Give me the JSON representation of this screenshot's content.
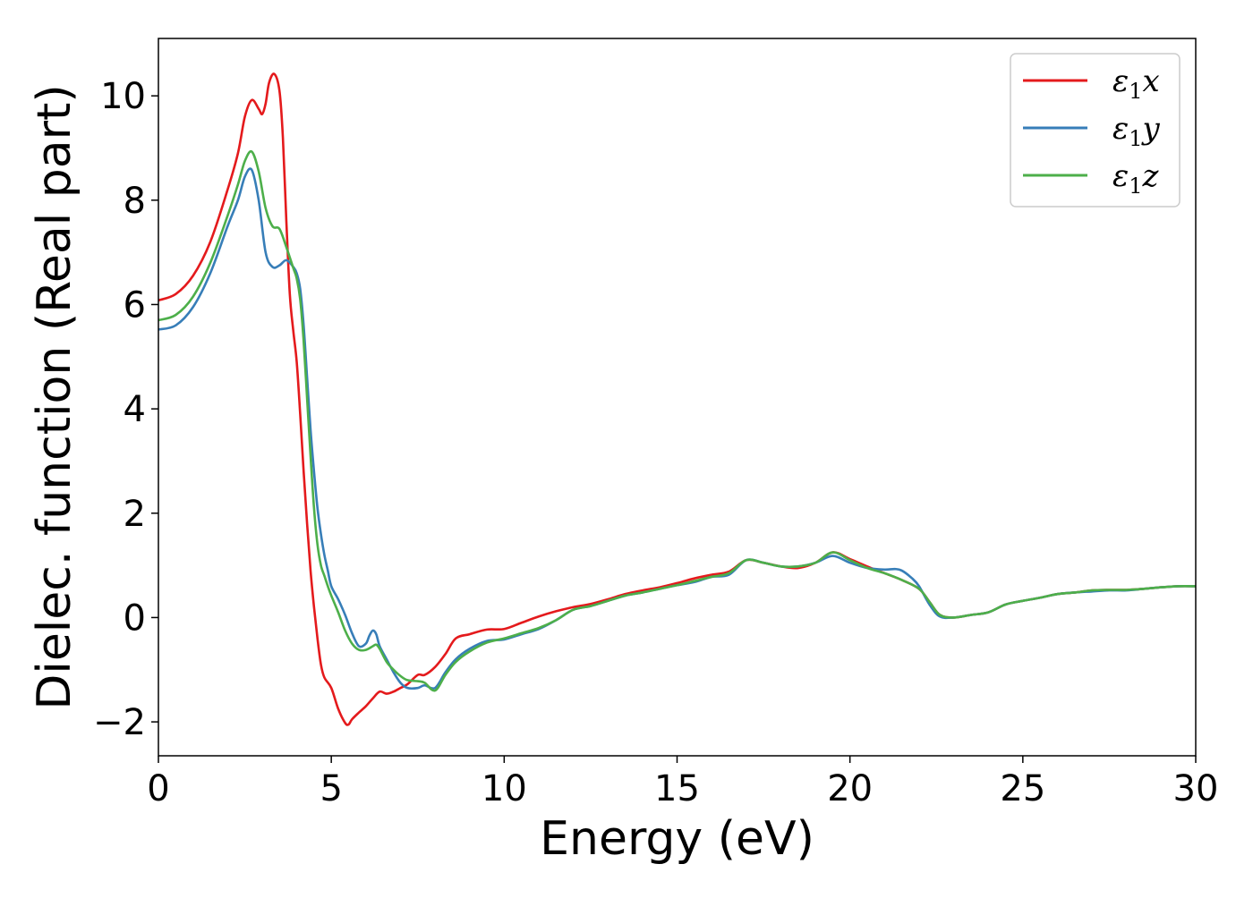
{
  "chart_data": {
    "type": "line",
    "title": "",
    "xlabel": "Energy (eV)",
    "ylabel": "Dielec. function (Real part)",
    "xlim": [
      0,
      30
    ],
    "ylim": [
      -2.65,
      11.1
    ],
    "xticks": [
      0,
      5,
      10,
      15,
      20,
      25,
      30
    ],
    "xtick_labels": [
      "0",
      "5",
      "10",
      "15",
      "20",
      "25",
      "30"
    ],
    "yticks": [
      -2,
      0,
      2,
      4,
      6,
      8,
      10
    ],
    "ytick_labels": [
      "−2",
      "0",
      "2",
      "4",
      "6",
      "8",
      "10"
    ],
    "grid": false,
    "legend_position": "top-right",
    "series": [
      {
        "name": "ε₁x",
        "legend_symbol": "ε",
        "legend_sub": "1",
        "legend_axis": "x",
        "color": "#e41a1c",
        "x": [
          0,
          0.5,
          1,
          1.5,
          2,
          2.3,
          2.5,
          2.7,
          2.9,
          3.0,
          3.1,
          3.2,
          3.35,
          3.5,
          3.6,
          3.7,
          3.8,
          3.9,
          4.0,
          4.1,
          4.2,
          4.3,
          4.4,
          4.5,
          4.6,
          4.7,
          4.8,
          5.0,
          5.2,
          5.4,
          5.5,
          5.6,
          5.8,
          6.0,
          6.2,
          6.4,
          6.6,
          6.8,
          7.0,
          7.2,
          7.5,
          7.7,
          8.0,
          8.3,
          8.6,
          9.0,
          9.5,
          10,
          10.5,
          11,
          11.5,
          12,
          12.5,
          13,
          13.5,
          14,
          14.5,
          15,
          15.5,
          16,
          16.5,
          17,
          17.5,
          18,
          18.5,
          19,
          19.5,
          20,
          20.5,
          21,
          21.5,
          22,
          22.3,
          22.6,
          23,
          23.5,
          24,
          24.5,
          25,
          25.5,
          26,
          26.5,
          27,
          27.5,
          28,
          28.5,
          29,
          29.5,
          30
        ],
        "y": [
          6.08,
          6.2,
          6.55,
          7.2,
          8.2,
          8.9,
          9.6,
          9.92,
          9.75,
          9.65,
          9.85,
          10.25,
          10.42,
          10.1,
          9.2,
          7.6,
          6.2,
          5.5,
          4.9,
          3.9,
          2.8,
          1.8,
          0.9,
          0.2,
          -0.4,
          -0.9,
          -1.15,
          -1.35,
          -1.75,
          -2.02,
          -2.05,
          -1.95,
          -1.82,
          -1.7,
          -1.55,
          -1.42,
          -1.46,
          -1.42,
          -1.35,
          -1.28,
          -1.1,
          -1.1,
          -0.95,
          -0.7,
          -0.4,
          -0.32,
          -0.23,
          -0.22,
          -0.1,
          0.02,
          0.12,
          0.2,
          0.26,
          0.35,
          0.45,
          0.52,
          0.58,
          0.66,
          0.75,
          0.82,
          0.88,
          1.1,
          1.05,
          0.98,
          0.95,
          1.05,
          1.25,
          1.12,
          0.98,
          0.85,
          0.72,
          0.55,
          0.3,
          0.05,
          0.0,
          0.05,
          0.1,
          0.25,
          0.32,
          0.38,
          0.45,
          0.48,
          0.52,
          0.53,
          0.53,
          0.55,
          0.58,
          0.6,
          0.6
        ]
      },
      {
        "name": "ε₁y",
        "legend_symbol": "ε",
        "legend_sub": "1",
        "legend_axis": "y",
        "color": "#377eb8",
        "x": [
          0,
          0.5,
          1,
          1.5,
          2,
          2.3,
          2.5,
          2.7,
          2.9,
          3.1,
          3.3,
          3.5,
          3.7,
          3.9,
          4.0,
          4.1,
          4.2,
          4.3,
          4.4,
          4.5,
          4.6,
          4.7,
          4.8,
          4.9,
          5.0,
          5.2,
          5.4,
          5.6,
          5.8,
          6.0,
          6.1,
          6.2,
          6.3,
          6.4,
          6.6,
          6.8,
          7.0,
          7.2,
          7.5,
          7.7,
          8.0,
          8.3,
          8.6,
          9.0,
          9.5,
          10,
          10.5,
          11,
          11.5,
          12,
          12.5,
          13,
          13.5,
          14,
          14.5,
          15,
          15.5,
          16,
          16.5,
          17,
          17.5,
          18,
          18.5,
          19,
          19.5,
          20,
          20.5,
          21,
          21.3,
          21.5,
          21.8,
          22,
          22.3,
          22.6,
          23,
          23.5,
          24,
          24.5,
          25,
          25.5,
          26,
          26.5,
          27,
          27.5,
          28,
          28.5,
          29,
          29.5,
          30
        ],
        "y": [
          5.52,
          5.6,
          5.95,
          6.6,
          7.5,
          8.0,
          8.45,
          8.58,
          8.0,
          7.0,
          6.72,
          6.75,
          6.85,
          6.72,
          6.6,
          6.3,
          5.6,
          4.6,
          3.6,
          2.8,
          2.1,
          1.6,
          1.2,
          0.9,
          0.6,
          0.35,
          0.05,
          -0.3,
          -0.55,
          -0.5,
          -0.35,
          -0.25,
          -0.32,
          -0.55,
          -0.8,
          -1.05,
          -1.25,
          -1.35,
          -1.35,
          -1.3,
          -1.35,
          -1.05,
          -0.8,
          -0.6,
          -0.45,
          -0.42,
          -0.32,
          -0.22,
          -0.05,
          0.15,
          0.22,
          0.32,
          0.42,
          0.48,
          0.55,
          0.62,
          0.68,
          0.78,
          0.82,
          1.1,
          1.05,
          0.98,
          0.98,
          1.05,
          1.18,
          1.05,
          0.95,
          0.92,
          0.93,
          0.9,
          0.75,
          0.6,
          0.25,
          0.02,
          0.0,
          0.05,
          0.1,
          0.25,
          0.32,
          0.38,
          0.45,
          0.48,
          0.5,
          0.52,
          0.52,
          0.55,
          0.58,
          0.6,
          0.6
        ]
      },
      {
        "name": "ε₁z",
        "legend_symbol": "ε",
        "legend_sub": "1",
        "legend_axis": "z",
        "color": "#4daf4a",
        "x": [
          0,
          0.5,
          1,
          1.5,
          2,
          2.3,
          2.5,
          2.7,
          2.9,
          3.1,
          3.3,
          3.5,
          3.7,
          3.9,
          4.0,
          4.1,
          4.2,
          4.3,
          4.4,
          4.5,
          4.6,
          4.7,
          4.8,
          4.9,
          5.0,
          5.2,
          5.4,
          5.6,
          5.8,
          6.0,
          6.2,
          6.3,
          6.4,
          6.6,
          6.8,
          7.0,
          7.2,
          7.5,
          7.7,
          8.0,
          8.3,
          8.6,
          9.0,
          9.5,
          10,
          10.5,
          11,
          11.5,
          12,
          12.5,
          13,
          13.5,
          14,
          14.5,
          15,
          15.5,
          16,
          16.5,
          17,
          17.5,
          18,
          18.5,
          19,
          19.5,
          20,
          20.5,
          21,
          21.5,
          22,
          22.3,
          22.6,
          23,
          23.5,
          24,
          24.5,
          25,
          25.5,
          26,
          26.5,
          27,
          27.5,
          28,
          28.5,
          29,
          29.5,
          30
        ],
        "y": [
          5.7,
          5.8,
          6.15,
          6.8,
          7.7,
          8.3,
          8.75,
          8.93,
          8.55,
          7.85,
          7.5,
          7.45,
          7.1,
          6.7,
          6.5,
          6.1,
          5.3,
          4.2,
          3.1,
          2.1,
          1.4,
          1.0,
          0.8,
          0.6,
          0.42,
          0.1,
          -0.25,
          -0.5,
          -0.62,
          -0.62,
          -0.55,
          -0.52,
          -0.6,
          -0.85,
          -1.0,
          -1.12,
          -1.2,
          -1.22,
          -1.25,
          -1.4,
          -1.1,
          -0.85,
          -0.65,
          -0.48,
          -0.4,
          -0.3,
          -0.2,
          -0.05,
          0.15,
          0.22,
          0.32,
          0.42,
          0.48,
          0.55,
          0.62,
          0.7,
          0.78,
          0.85,
          1.1,
          1.05,
          0.98,
          0.98,
          1.05,
          1.25,
          1.1,
          0.95,
          0.85,
          0.72,
          0.55,
          0.3,
          0.05,
          0.0,
          0.05,
          0.1,
          0.25,
          0.32,
          0.38,
          0.45,
          0.48,
          0.52,
          0.53,
          0.53,
          0.55,
          0.58,
          0.6,
          0.6
        ]
      }
    ]
  }
}
